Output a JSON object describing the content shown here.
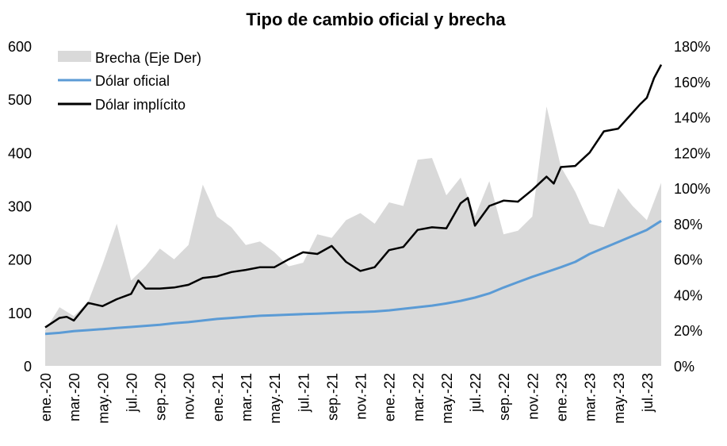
{
  "chart_data": {
    "type": "line",
    "title": "Tipo de cambio oficial y brecha",
    "xlabel": "",
    "ylabel": "",
    "ylabel_right": "",
    "x_tick_labels": [
      "ene.-20",
      "mar.-20",
      "may.-20",
      "jul.-20",
      "sep.-20",
      "nov.-20",
      "ene.-21",
      "mar.-21",
      "may.-21",
      "jul.-21",
      "sep.-21",
      "nov.-21",
      "ene.-22",
      "mar.-22",
      "may.-22",
      "jul.-22",
      "sep.-22",
      "nov.-22",
      "ene.-23",
      "mar.-23",
      "may.-23",
      "jul.-23"
    ],
    "y_ticks_left": [
      "0",
      "100",
      "200",
      "300",
      "400",
      "500",
      "600"
    ],
    "y_ticks_right": [
      "0%",
      "20%",
      "40%",
      "60%",
      "80%",
      "100%",
      "120%",
      "140%",
      "160%",
      "180%"
    ],
    "ylim_left": [
      0,
      600
    ],
    "ylim_right": [
      0,
      180
    ],
    "x_months_range": [
      "ene.-20",
      "ago.-23"
    ],
    "legend": {
      "placement": "top-left",
      "items": [
        "Brecha (Eje Der)",
        "Dólar oficial",
        "Dólar implícito"
      ]
    },
    "colors": {
      "brecha": "#d9d9d9",
      "oficial": "#5b9bd5",
      "implicito": "#000000"
    },
    "series": [
      {
        "name": "Dólar oficial",
        "axis": "left",
        "style": "line",
        "x": [
          0,
          1,
          2,
          3,
          4,
          5,
          6,
          7,
          8,
          9,
          10,
          11,
          12,
          13,
          14,
          15,
          16,
          17,
          18,
          19,
          20,
          21,
          22,
          23,
          24,
          25,
          26,
          27,
          28,
          29,
          30,
          31,
          32,
          33,
          34,
          35,
          36,
          37,
          38,
          42,
          43
        ],
        "y": [
          60,
          62,
          65,
          67,
          69,
          71,
          73,
          75,
          77,
          80,
          82,
          85,
          88,
          90,
          92,
          94,
          95,
          96,
          97,
          98,
          99,
          100,
          101,
          102,
          104,
          107,
          110,
          113,
          117,
          122,
          128,
          136,
          147,
          157,
          167,
          176,
          185,
          195,
          210,
          255,
          272
        ]
      },
      {
        "name": "Dólar implícito",
        "axis": "left",
        "style": "line",
        "x": [
          0,
          1,
          1.5,
          2,
          3,
          4,
          5,
          6,
          6.5,
          7,
          8,
          9,
          10,
          11,
          12,
          13,
          14,
          15,
          16,
          17,
          18,
          19,
          20,
          21,
          22,
          23,
          24,
          25,
          26,
          27,
          28,
          29,
          29.5,
          30,
          31,
          32,
          33,
          34,
          35,
          35.5,
          36,
          37,
          38,
          39,
          40,
          41,
          41.5,
          42,
          42.5,
          43
        ],
        "y": [
          72,
          90,
          92,
          85,
          118,
          112,
          125,
          135,
          160,
          145,
          145,
          147,
          152,
          165,
          168,
          176,
          180,
          185,
          185,
          200,
          213,
          210,
          225,
          195,
          178,
          185,
          217,
          223,
          255,
          260,
          258,
          305,
          315,
          263,
          300,
          310,
          308,
          330,
          355,
          342,
          373,
          375,
          400,
          440,
          445,
          475,
          490,
          503,
          540,
          565
        ]
      },
      {
        "name": "Brecha (Eje Der)",
        "axis": "right",
        "style": "area",
        "x": [
          0,
          1,
          2,
          3,
          4,
          5,
          6,
          7,
          8,
          9,
          10,
          11,
          12,
          13,
          14,
          15,
          16,
          17,
          18,
          19,
          20,
          21,
          22,
          23,
          24,
          25,
          26,
          27,
          28,
          29,
          30,
          31,
          32,
          33,
          34,
          35,
          36,
          37,
          38,
          39,
          40,
          41,
          42,
          43
        ],
        "y": [
          20,
          33,
          28,
          36,
          57,
          80,
          48,
          56,
          66,
          60,
          68,
          102,
          84,
          78,
          68,
          70,
          64,
          56,
          58,
          74,
          72,
          82,
          86,
          80,
          92,
          90,
          116,
          117,
          96,
          106,
          84,
          104,
          74,
          76,
          84,
          146,
          112,
          98,
          80,
          78,
          100,
          90,
          82,
          103
        ]
      }
    ]
  }
}
